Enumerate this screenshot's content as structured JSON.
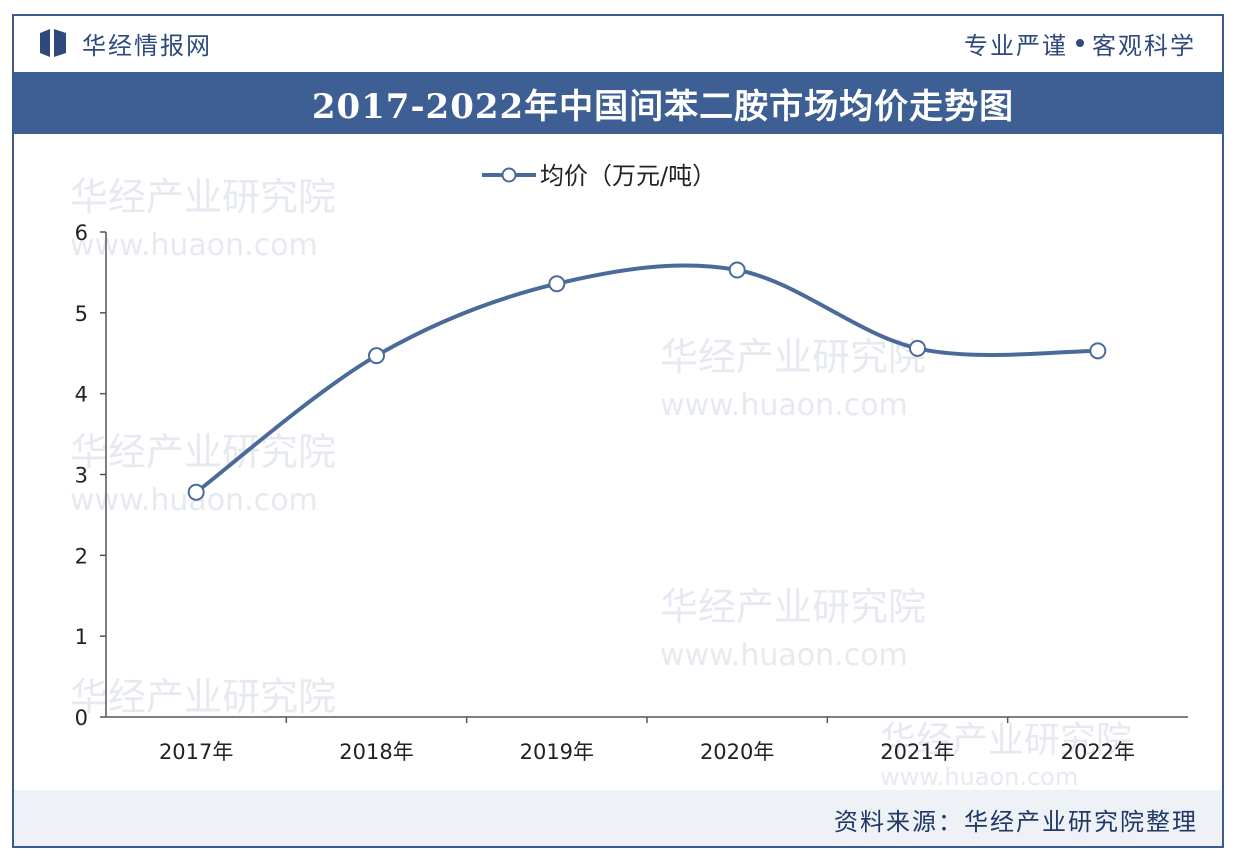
{
  "header": {
    "brand_name": "华经情报网",
    "slogan_left": "专业严谨",
    "slogan_right": "客观科学"
  },
  "title": "2017-2022年中国间苯二胺市场均价走势图",
  "footer": {
    "source": "资料来源：华经产业研究院整理"
  },
  "watermark": {
    "text": "华经产业研究院",
    "url": "www.huaon.com"
  },
  "colors": {
    "header_blue": "#3e5f93",
    "line": "#4a6b9a",
    "text_dark": "#2e4a7d"
  },
  "chart_data": {
    "type": "line",
    "title": "2017-2022年中国间苯二胺市场均价走势图",
    "categories": [
      "2017年",
      "2018年",
      "2019年",
      "2020年",
      "2021年",
      "2022年"
    ],
    "series": [
      {
        "name": "均价（万元/吨）",
        "values": [
          2.78,
          4.47,
          5.36,
          5.53,
          4.56,
          4.53
        ]
      }
    ],
    "ylim": [
      0,
      6
    ],
    "yticks": [
      "0",
      "1",
      "2",
      "3",
      "4",
      "5",
      "6"
    ],
    "smooth": true,
    "legend_position": "top-center",
    "grid": false
  }
}
